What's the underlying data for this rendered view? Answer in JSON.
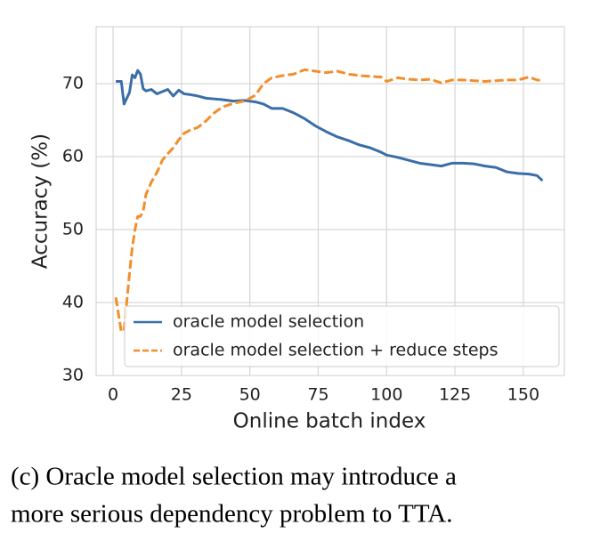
{
  "chart_data": {
    "type": "line",
    "xlabel": "Online batch index",
    "ylabel": "Accuracy (%)",
    "xlim": [
      -6.2,
      165
    ],
    "ylim": [
      30,
      77.8
    ],
    "xticks": [
      0,
      25,
      50,
      75,
      100,
      125,
      150
    ],
    "yticks": [
      30,
      40,
      50,
      60,
      70
    ],
    "grid": true,
    "legend": "lower right",
    "x": [
      1,
      3,
      4,
      6,
      7,
      8,
      9,
      10,
      11,
      12,
      14,
      16,
      18,
      20,
      22,
      24,
      26,
      28,
      31,
      34,
      37,
      40,
      44,
      48,
      52,
      55,
      58,
      62,
      66,
      70,
      74,
      78,
      82,
      86,
      90,
      94,
      98,
      100,
      104,
      108,
      112,
      116,
      120,
      124,
      128,
      132,
      136,
      140,
      144,
      148,
      152,
      155,
      157
    ],
    "series": [
      {
        "name": "oracle model selection",
        "color": "#3a6ea8",
        "dash": false,
        "values": [
          70.3,
          70.3,
          67.2,
          68.8,
          71.2,
          70.8,
          71.8,
          71.3,
          69.3,
          69.0,
          69.2,
          68.6,
          68.9,
          69.2,
          68.3,
          69.1,
          68.6,
          68.5,
          68.3,
          68.0,
          67.9,
          67.8,
          67.6,
          67.7,
          67.5,
          67.2,
          66.6,
          66.6,
          66.0,
          65.2,
          64.2,
          63.4,
          62.7,
          62.2,
          61.6,
          61.2,
          60.6,
          60.2,
          59.9,
          59.5,
          59.1,
          58.9,
          58.7,
          59.1,
          59.1,
          59.0,
          58.7,
          58.5,
          57.9,
          57.7,
          57.6,
          57.4,
          56.7
        ]
      },
      {
        "name": "oracle model selection + reduce steps",
        "color": "#f28e2b",
        "dash": true,
        "values": [
          40.7,
          36.0,
          36.2,
          44.0,
          47.5,
          50.0,
          51.8,
          51.8,
          52.5,
          54.8,
          56.5,
          57.8,
          59.5,
          60.4,
          61.2,
          62.3,
          63.2,
          63.6,
          64.0,
          64.9,
          66.0,
          66.8,
          67.3,
          67.6,
          68.4,
          70.0,
          70.8,
          71.1,
          71.3,
          71.9,
          71.7,
          71.5,
          71.7,
          71.3,
          71.1,
          71.0,
          70.9,
          70.3,
          70.8,
          70.6,
          70.5,
          70.6,
          70.1,
          70.5,
          70.5,
          70.4,
          70.3,
          70.4,
          70.5,
          70.5,
          70.9,
          70.5,
          70.4
        ]
      }
    ],
    "caption": [
      "(c) Oracle model selection may introduce a",
      "more serious dependency problem to TTA."
    ]
  }
}
